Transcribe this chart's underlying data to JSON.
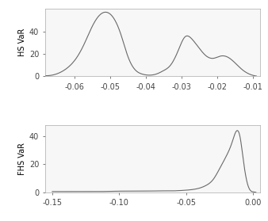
{
  "hs_x": [
    -0.068,
    -0.065,
    -0.063,
    -0.061,
    -0.059,
    -0.057,
    -0.055,
    -0.053,
    -0.051,
    -0.049,
    -0.047,
    -0.045,
    -0.043,
    -0.041,
    -0.039,
    -0.037,
    -0.035,
    -0.033,
    -0.031,
    -0.029,
    -0.027,
    -0.025,
    -0.023,
    -0.021,
    -0.019,
    -0.017,
    -0.015,
    -0.013,
    -0.011,
    -0.009
  ],
  "hs_y": [
    0.5,
    2,
    5,
    10,
    18,
    30,
    44,
    54,
    57,
    52,
    38,
    18,
    6,
    2,
    1,
    2,
    5,
    10,
    22,
    35,
    33,
    25,
    18,
    16,
    18,
    17,
    12,
    6,
    2,
    0.2
  ],
  "fhs_x": [
    -0.15,
    -0.145,
    -0.14,
    -0.135,
    -0.13,
    -0.125,
    -0.12,
    -0.115,
    -0.11,
    -0.105,
    -0.1,
    -0.095,
    -0.09,
    -0.085,
    -0.08,
    -0.075,
    -0.07,
    -0.065,
    -0.06,
    -0.055,
    -0.05,
    -0.045,
    -0.04,
    -0.035,
    -0.03,
    -0.025,
    -0.02,
    -0.016,
    -0.013,
    -0.01,
    -0.007,
    -0.004,
    -0.001,
    0.002
  ],
  "fhs_y": [
    0.5,
    0.5,
    0.5,
    0.5,
    0.5,
    0.5,
    0.5,
    0.5,
    0.6,
    0.7,
    0.8,
    0.8,
    0.8,
    0.8,
    0.9,
    0.9,
    1.0,
    1.0,
    1.0,
    1.2,
    1.5,
    2.0,
    3.0,
    5.0,
    9.0,
    17.0,
    26.0,
    35.0,
    43.0,
    40.0,
    20.0,
    5.0,
    0.5,
    0.0
  ],
  "hs_xlim": [
    -0.068,
    -0.008
  ],
  "hs_ylim": [
    0,
    60
  ],
  "hs_yticks": [
    0,
    20,
    40
  ],
  "hs_xticks": [
    -0.06,
    -0.05,
    -0.04,
    -0.03,
    -0.02,
    -0.01
  ],
  "hs_ylabel": "HS VaR",
  "fhs_xlim": [
    -0.155,
    0.005
  ],
  "fhs_ylim": [
    0,
    48
  ],
  "fhs_yticks": [
    0,
    20,
    40
  ],
  "fhs_xticks": [
    -0.15,
    -0.1,
    -0.05,
    0.0
  ],
  "fhs_ylabel": "FHS VaR",
  "line_color": "#696969",
  "bg_color": "#ffffff",
  "panel_bg": "#f7f7f7",
  "font_size": 7.5
}
